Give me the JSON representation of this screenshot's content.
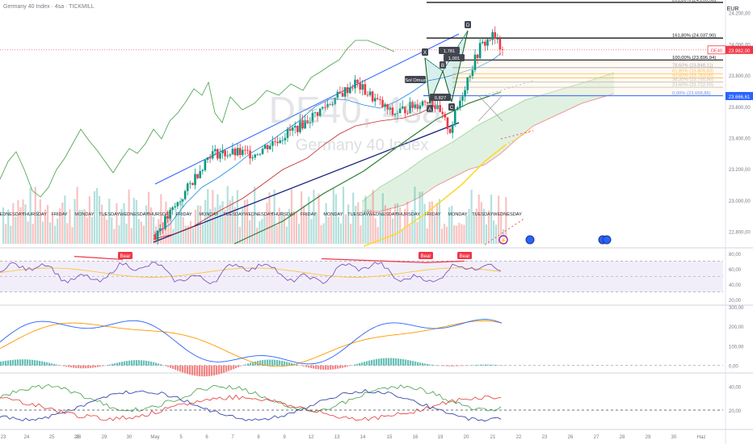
{
  "header": {
    "title": "Germany 40 Index · 4sa · TICKMILL",
    "currency": "EUR"
  },
  "watermark": {
    "symbol": "DE40, 4sa",
    "name": "Germany 40 Index"
  },
  "colors": {
    "bull": "#089981",
    "bear": "#f23645",
    "fib_blue": "#2962ff",
    "price_tag": "#f23645",
    "ichimoku_cloud": "#c8e6c9",
    "rsi_band": "#ede7f6"
  },
  "chart_data": {
    "type": "candlestick",
    "price_axis": {
      "ticks": [
        "24.200,00",
        "24.000,00",
        "23.800,00",
        "23.600,00",
        "23.400,00",
        "23.200,00",
        "23.000,00",
        "22.800,00"
      ],
      "range": [
        22700,
        24240
      ]
    },
    "current_price": {
      "label": "DE40",
      "value": "23.962,00"
    },
    "fib_level_tag": "23.666,61",
    "fib_levels": [
      {
        "label": "261,80% (24.265,98)",
        "value": 24265.98
      },
      {
        "label": "161,80% (24.037,90)",
        "value": 24037.9
      },
      {
        "label": "100,00% (23.896,94)",
        "value": 23896.94
      },
      {
        "label": "78,60% (23.848,11)",
        "value": 23848.11
      },
      {
        "label": "61,80% (23.809,83)",
        "value": 23809.83
      },
      {
        "label": "50,00% (23.783,00)",
        "value": 23783.0
      },
      {
        "label": "38,20% (23.755,90)",
        "value": 23755.9
      },
      {
        "label": "23,60% (23.722,50)",
        "value": 23722.5
      },
      {
        "label": "0,00% (23.668,86)",
        "value": 23668.86
      }
    ],
    "pattern_points": [
      "X",
      "A",
      "B",
      "C",
      "D"
    ],
    "pattern_labels": [
      "1,781",
      "1,001",
      "0,827",
      "Sol Omuz"
    ],
    "day_labels": [
      "WEDNESDAY",
      "THURSDAY",
      "FRIDAY",
      "MONDAY",
      "TUESDAY",
      "WEDNESDAY",
      "THURSDAY",
      "FRIDAY",
      "MONDAY",
      "TUESDAY",
      "WEDNESDAY",
      "THURSDAY",
      "FRIDAY",
      "MONDAY",
      "TUESDAY",
      "WEDNESDAY",
      "THURSDAY",
      "FRIDAY",
      "MONDAY",
      "TUESDAY",
      "WEDNESDAY"
    ],
    "x_axis_ticks": [
      "23",
      "24",
      "25",
      "26",
      "28",
      "29",
      "30",
      "May",
      "5",
      "6",
      "7",
      "8",
      "9",
      "12",
      "13",
      "14",
      "15",
      "16",
      "19",
      "20",
      "21",
      "22",
      "23",
      "26",
      "27",
      "28",
      "29",
      "30",
      "Haz"
    ],
    "rsi": {
      "ticks": [
        "80,00",
        "60,00",
        "40,00",
        "20,00"
      ],
      "signals": [
        "Bear",
        "Bear",
        "Bear"
      ]
    },
    "macd": {
      "ticks": [
        "300,00",
        "200,00",
        "100,00",
        "0,00"
      ]
    },
    "dmi": {
      "ticks": [
        "40,00",
        "20,00"
      ]
    }
  }
}
